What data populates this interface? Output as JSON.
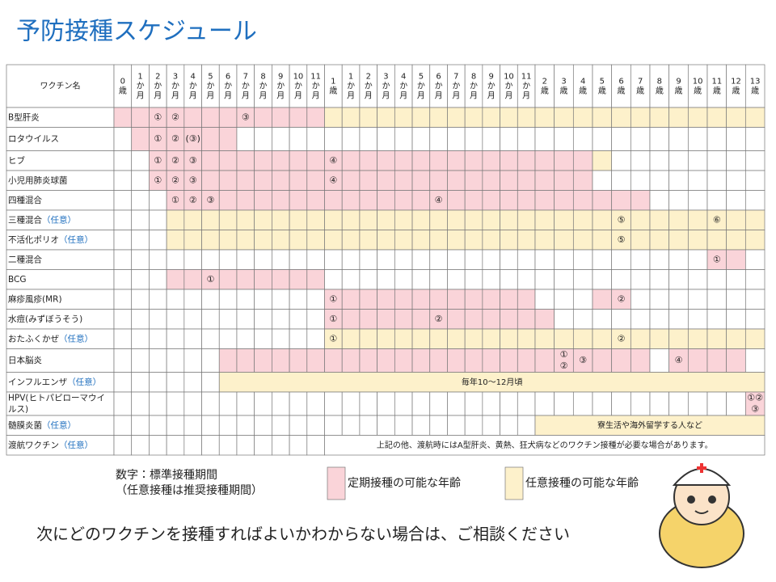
{
  "title": "予防接種スケジュール",
  "table": {
    "name_header": "ワクチン名",
    "columns": [
      "0歳",
      "1か月",
      "2か月",
      "3か月",
      "4か月",
      "5か月",
      "6か月",
      "7か月",
      "8か月",
      "9か月",
      "10か月",
      "11か月",
      "1歳",
      "1か月",
      "2か月",
      "3か月",
      "4か月",
      "5か月",
      "6か月",
      "7か月",
      "8か月",
      "9か月",
      "10か月",
      "11か月",
      "2歳",
      "3歳",
      "4歳",
      "5歳",
      "6歳",
      "7歳",
      "8歳",
      "9歳",
      "10歳",
      "11歳",
      "12歳",
      "13歳"
    ],
    "fill_colors": {
      "p": "#fad4d9",
      "y": "#fdf1cb",
      "w": "#ffffff"
    },
    "rows": [
      {
        "name": "B型肝炎",
        "fill": "ppppppppppppyyyyyyyyyyyyyyyyyyyyyyyy",
        "marks": [
          null,
          null,
          "①",
          "②",
          null,
          null,
          null,
          "③",
          null,
          null,
          null,
          null,
          null,
          null,
          null,
          null,
          null,
          null,
          null,
          null,
          null,
          null,
          null,
          null,
          null,
          null,
          null,
          null,
          null,
          null,
          null,
          null,
          null,
          null,
          null,
          null
        ]
      },
      {
        "name": "ロタウイルス",
        "fill": ".pppppp.............................",
        "marks": [
          null,
          null,
          "①",
          "②",
          "(③)",
          null,
          null,
          null,
          null,
          null,
          null,
          null,
          null,
          null,
          null,
          null,
          null,
          null,
          null,
          null,
          null,
          null,
          null,
          null,
          null,
          null,
          null,
          null,
          null,
          null,
          null,
          null,
          null,
          null,
          null,
          null
        ]
      },
      {
        "name": "ヒブ",
        "fill": "..pppppppppppppppppppppppppy........",
        "marks": [
          null,
          null,
          "①",
          "②",
          "③",
          null,
          null,
          null,
          null,
          null,
          null,
          null,
          "④",
          null,
          null,
          null,
          null,
          null,
          null,
          null,
          null,
          null,
          null,
          null,
          null,
          null,
          null,
          null,
          null,
          null,
          null,
          null,
          null,
          null,
          null,
          null
        ]
      },
      {
        "name": "小児用肺炎球菌",
        "fill": "..ppppppppppppppppppppppppp.........",
        "marks": [
          null,
          null,
          "①",
          "②",
          "③",
          null,
          null,
          null,
          null,
          null,
          null,
          null,
          "④",
          null,
          null,
          null,
          null,
          null,
          null,
          null,
          null,
          null,
          null,
          null,
          null,
          null,
          null,
          null,
          null,
          null,
          null,
          null,
          null,
          null,
          null,
          null
        ]
      },
      {
        "name": "四種混合",
        "fill": "...ppppppppppppppppppppppppppp......",
        "marks": [
          null,
          null,
          null,
          "①",
          "②",
          "③",
          null,
          null,
          null,
          null,
          null,
          null,
          null,
          null,
          null,
          null,
          null,
          null,
          "④",
          null,
          null,
          null,
          null,
          null,
          null,
          null,
          null,
          null,
          null,
          null,
          null,
          null,
          null,
          null,
          null,
          null
        ]
      },
      {
        "name": "三種混合",
        "tag": "（任意）",
        "fill": "...yyyyyyyyyyyyyyyyyyyyyyyyyyyyyyyyy",
        "marks": [
          null,
          null,
          null,
          null,
          null,
          null,
          null,
          null,
          null,
          null,
          null,
          null,
          null,
          null,
          null,
          null,
          null,
          null,
          null,
          null,
          null,
          null,
          null,
          null,
          null,
          null,
          null,
          null,
          "⑤",
          null,
          null,
          null,
          null,
          "⑥",
          null,
          null
        ]
      },
      {
        "name": "不活化ポリオ",
        "tag": "（任意）",
        "fill": "...yyyyyyyyyyyyyyyyyyyyyyyyyyyyyyyyy",
        "marks": [
          null,
          null,
          null,
          null,
          null,
          null,
          null,
          null,
          null,
          null,
          null,
          null,
          null,
          null,
          null,
          null,
          null,
          null,
          null,
          null,
          null,
          null,
          null,
          null,
          null,
          null,
          null,
          null,
          "⑤",
          null,
          null,
          null,
          null,
          null,
          null,
          null
        ]
      },
      {
        "name": "二種混合",
        "fill": ".................................pp.",
        "marks": [
          null,
          null,
          null,
          null,
          null,
          null,
          null,
          null,
          null,
          null,
          null,
          null,
          null,
          null,
          null,
          null,
          null,
          null,
          null,
          null,
          null,
          null,
          null,
          null,
          null,
          null,
          null,
          null,
          null,
          null,
          null,
          null,
          null,
          "①",
          null,
          null
        ]
      },
      {
        "name": "BCG",
        "fill": "...ppppppppp........................",
        "marks": [
          null,
          null,
          null,
          null,
          null,
          "①",
          null,
          null,
          null,
          null,
          null,
          null,
          null,
          null,
          null,
          null,
          null,
          null,
          null,
          null,
          null,
          null,
          null,
          null,
          null,
          null,
          null,
          null,
          null,
          null,
          null,
          null,
          null,
          null,
          null,
          null
        ]
      },
      {
        "name": "麻疹風疹(MR)",
        "fill": "............pppppppppppp...pp.......",
        "marks": [
          null,
          null,
          null,
          null,
          null,
          null,
          null,
          null,
          null,
          null,
          null,
          null,
          "①",
          null,
          null,
          null,
          null,
          null,
          null,
          null,
          null,
          null,
          null,
          null,
          null,
          null,
          null,
          null,
          "②",
          null,
          null,
          null,
          null,
          null,
          null,
          null
        ]
      },
      {
        "name": "水痘(みずぼうそう)",
        "fill": "............ppppppppppppp...........",
        "marks": [
          null,
          null,
          null,
          null,
          null,
          null,
          null,
          null,
          null,
          null,
          null,
          null,
          "①",
          null,
          null,
          null,
          null,
          null,
          "②",
          null,
          null,
          null,
          null,
          null,
          null,
          null,
          null,
          null,
          null,
          null,
          null,
          null,
          null,
          null,
          null,
          null
        ]
      },
      {
        "name": "おたふくかぜ",
        "tag": "（任意）",
        "fill": "............yyyyyyyyyyyyyyyyyyyyyyyy",
        "marks": [
          null,
          null,
          null,
          null,
          null,
          null,
          null,
          null,
          null,
          null,
          null,
          null,
          "①",
          null,
          null,
          null,
          null,
          null,
          null,
          null,
          null,
          null,
          null,
          null,
          null,
          null,
          null,
          null,
          "②",
          null,
          null,
          null,
          null,
          null,
          null,
          null
        ]
      },
      {
        "name": "日本脳炎",
        "fill": "......pppppppppppppppppppppppp.pppp.",
        "marks": [
          null,
          null,
          null,
          null,
          null,
          null,
          null,
          null,
          null,
          null,
          null,
          null,
          null,
          null,
          null,
          null,
          null,
          null,
          null,
          null,
          null,
          null,
          null,
          null,
          null,
          "①②",
          "③",
          null,
          null,
          null,
          null,
          "④",
          null,
          null,
          null,
          null
        ]
      },
      {
        "name": "インフルエンザ",
        "tag": "（任意）",
        "fill": "......yyyyyyyyyyyyyyyyyyyyyyyyyyyyyy",
        "note": "毎年10〜12月頃"
      },
      {
        "name": "HPV(ヒトパピローマウイルス)",
        "fill": "...................................p",
        "marks": [
          null,
          null,
          null,
          null,
          null,
          null,
          null,
          null,
          null,
          null,
          null,
          null,
          null,
          null,
          null,
          null,
          null,
          null,
          null,
          null,
          null,
          null,
          null,
          null,
          null,
          null,
          null,
          null,
          null,
          null,
          null,
          null,
          null,
          null,
          null,
          "①②③"
        ]
      },
      {
        "name": "髄膜炎菌",
        "tag": "（任意）",
        "fill": "........................yyyyyyyyyyyy",
        "note": "寮生活や海外留学する人など"
      },
      {
        "name": "渡航ワクチン",
        "tag": "（任意）",
        "fill": "............wwwwwwwwwwwwwwwwwwwwwwww",
        "note": "上記の他、渡航時にはA型肝炎、黄熱、狂犬病などのワクチン接種が必要な場合があります。"
      }
    ]
  },
  "legend": {
    "note1": "数字：標準接種期間",
    "note2": "（任意接種は推奨接種期間）",
    "items": [
      {
        "key": "p",
        "label": "定期接種の可能な年齢"
      },
      {
        "key": "y",
        "label": "任意接種の可能な年齢"
      }
    ]
  },
  "footer": "次にどのワクチンを接種すればよいかわからない場合は、ご相談ください"
}
